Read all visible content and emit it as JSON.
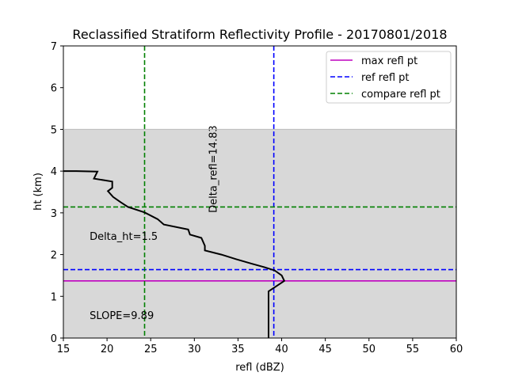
{
  "chart_data": {
    "type": "line",
    "title": "Reclassified Stratiform Reflectivity Profile - 20170801/2018",
    "xlabel": "refl (dBZ)",
    "ylabel": "ht (km)",
    "xlim": [
      15,
      60
    ],
    "ylim": [
      0,
      7
    ],
    "xticks": [
      "15",
      "20",
      "25",
      "30",
      "35",
      "40",
      "45",
      "50",
      "55",
      "60"
    ],
    "yticks": [
      "0",
      "1",
      "2",
      "3",
      "4",
      "5",
      "6",
      "7"
    ],
    "grid": false,
    "legend_position": "top-right",
    "shaded_region": {
      "y_from": 0,
      "y_to": 5,
      "color": "#d8d8d8"
    },
    "profile": {
      "color": "#000000",
      "x": [
        38.5,
        38.5,
        38.5,
        40.3,
        40.0,
        39.2,
        38.0,
        36.6,
        34.8,
        33.1,
        31.2,
        31.2,
        30.8,
        29.5,
        29.3,
        26.5,
        25.8,
        24.3,
        22.4,
        21.6,
        20.7,
        20.1,
        20.6,
        20.6,
        18.5,
        18.9,
        16.5,
        15.0
      ],
      "y": [
        0.0,
        0.5,
        1.12,
        1.37,
        1.5,
        1.62,
        1.7,
        1.78,
        1.89,
        2.0,
        2.1,
        2.21,
        2.4,
        2.48,
        2.6,
        2.72,
        2.85,
        3.01,
        3.14,
        3.25,
        3.38,
        3.52,
        3.6,
        3.75,
        3.82,
        3.99,
        4.0,
        4.0
      ]
    },
    "series": [
      {
        "name": "max refl pt",
        "orientation": "horizontal",
        "value": 1.37,
        "color": "#bf00bf",
        "style": "solid"
      },
      {
        "name": "ref refl pt",
        "orientation": "both",
        "value_y": 1.64,
        "value_x": 39.1,
        "color": "#0000ff",
        "style": "dashed"
      },
      {
        "name": "compare refl pt",
        "orientation": "both",
        "value_y": 3.14,
        "value_x": 24.3,
        "color": "#008000",
        "style": "dashed"
      }
    ],
    "annotations": [
      {
        "text": "Delta_refl=14.83",
        "x": 32.1,
        "y": 3.0,
        "rotation": 90
      },
      {
        "text": "Delta_ht=1.5",
        "x": 18.0,
        "y": 2.45
      },
      {
        "text": "SLOPE=9.89",
        "x": 18.0,
        "y": 0.55
      }
    ]
  }
}
